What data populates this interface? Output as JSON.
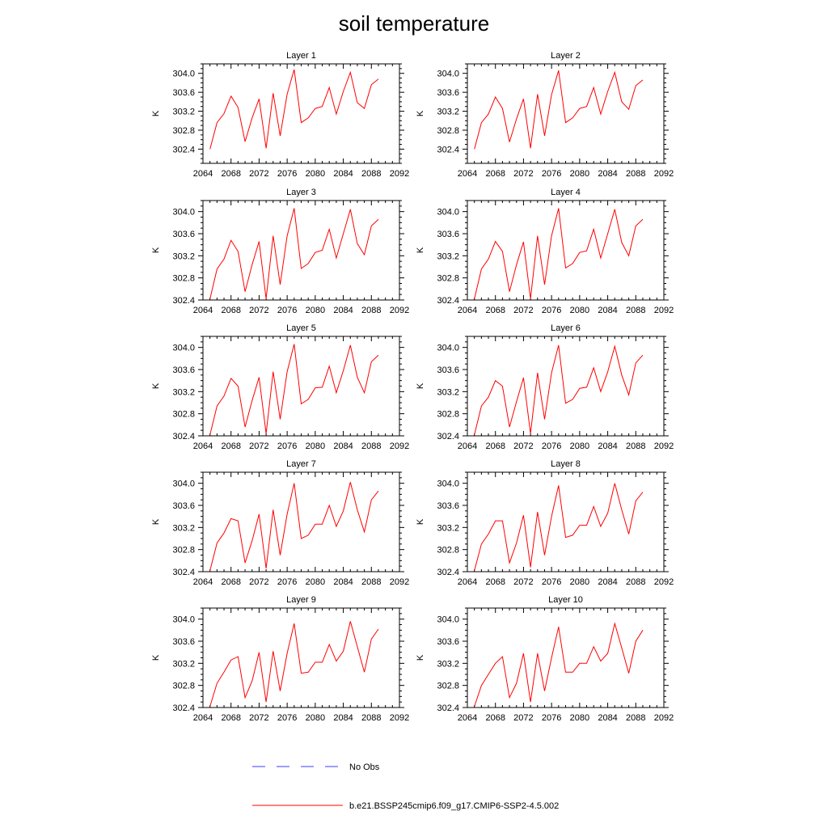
{
  "title": "soil temperature",
  "colors": {
    "series": "#ff0000",
    "obs": "#3b3bff",
    "axis": "#000000"
  },
  "legend": {
    "placement": "bottom",
    "items": [
      {
        "label": "No Obs",
        "style": "dashed",
        "color": "#3b3bff"
      },
      {
        "label": "b.e21.BSSP245cmip6.f09_g17.CMIP6-SSP2-4.5.002",
        "style": "solid",
        "color": "#ff0000"
      }
    ]
  },
  "chart_data": {
    "type": "line",
    "xlabel": "",
    "ylabel": "K",
    "xlim": [
      2064,
      2092
    ],
    "xticks": [
      "2064",
      "2068",
      "2072",
      "2076",
      "2080",
      "2084",
      "2088",
      "2092"
    ],
    "yticks": [
      "302.4",
      "302.8",
      "303.2",
      "303.6",
      "304.0"
    ],
    "grid": false,
    "x": [
      2065,
      2066,
      2067,
      2068,
      2069,
      2070,
      2071,
      2072,
      2073,
      2074,
      2075,
      2076,
      2077,
      2078,
      2079,
      2080,
      2081,
      2082,
      2083,
      2084,
      2085,
      2086,
      2087,
      2088,
      2089
    ],
    "panels": [
      {
        "title": "Layer 1",
        "ylim": [
          302.1,
          304.2
        ],
        "values": [
          302.4,
          302.96,
          303.15,
          303.52,
          303.28,
          302.56,
          303.06,
          303.46,
          302.42,
          303.58,
          302.68,
          303.56,
          304.08,
          302.96,
          303.06,
          303.26,
          303.3,
          303.7,
          303.14,
          303.62,
          304.02,
          303.38,
          303.26,
          303.76,
          303.88
        ]
      },
      {
        "title": "Layer 2",
        "ylim": [
          302.1,
          304.2
        ],
        "values": [
          302.4,
          302.96,
          303.14,
          303.5,
          303.26,
          302.55,
          303.04,
          303.46,
          302.42,
          303.56,
          302.68,
          303.55,
          304.06,
          302.96,
          303.06,
          303.26,
          303.3,
          303.7,
          303.14,
          303.62,
          304.02,
          303.4,
          303.24,
          303.74,
          303.86
        ]
      },
      {
        "title": "Layer 3",
        "ylim": [
          302.4,
          304.2
        ],
        "values": [
          302.42,
          302.96,
          303.14,
          303.48,
          303.28,
          302.55,
          303.04,
          303.46,
          302.42,
          303.56,
          302.68,
          303.56,
          304.06,
          302.97,
          303.06,
          303.26,
          303.3,
          303.68,
          303.16,
          303.6,
          304.04,
          303.42,
          303.22,
          303.74,
          303.86
        ]
      },
      {
        "title": "Layer 4",
        "ylim": [
          302.4,
          304.2
        ],
        "values": [
          302.42,
          302.96,
          303.14,
          303.46,
          303.28,
          302.55,
          303.04,
          303.45,
          302.42,
          303.56,
          302.68,
          303.56,
          304.06,
          302.98,
          303.06,
          303.26,
          303.29,
          303.68,
          303.16,
          303.6,
          304.04,
          303.44,
          303.2,
          303.74,
          303.86
        ]
      },
      {
        "title": "Layer 5",
        "ylim": [
          302.4,
          304.2
        ],
        "values": [
          302.42,
          302.94,
          303.12,
          303.44,
          303.3,
          302.56,
          303.04,
          303.46,
          302.44,
          303.56,
          302.7,
          303.56,
          304.06,
          302.98,
          303.06,
          303.27,
          303.28,
          303.66,
          303.18,
          303.58,
          304.04,
          303.46,
          303.18,
          303.74,
          303.86
        ]
      },
      {
        "title": "Layer 6",
        "ylim": [
          302.4,
          304.2
        ],
        "values": [
          302.42,
          302.94,
          303.1,
          303.4,
          303.3,
          302.56,
          303.02,
          303.45,
          302.44,
          303.54,
          302.7,
          303.54,
          304.04,
          302.99,
          303.06,
          303.26,
          303.28,
          303.63,
          303.2,
          303.56,
          304.02,
          303.5,
          303.14,
          303.72,
          303.86
        ]
      },
      {
        "title": "Layer 7",
        "ylim": [
          302.4,
          304.2
        ],
        "values": [
          302.42,
          302.92,
          303.1,
          303.36,
          303.32,
          302.56,
          302.96,
          303.44,
          302.46,
          303.52,
          302.7,
          303.44,
          304.0,
          303.0,
          303.06,
          303.26,
          303.26,
          303.6,
          303.22,
          303.5,
          304.02,
          303.52,
          303.12,
          303.7,
          303.86
        ]
      },
      {
        "title": "Layer 8",
        "ylim": [
          302.4,
          304.2
        ],
        "values": [
          302.42,
          302.9,
          303.08,
          303.32,
          303.32,
          302.56,
          302.92,
          303.42,
          302.48,
          303.48,
          302.7,
          303.4,
          303.96,
          303.02,
          303.06,
          303.24,
          303.24,
          303.58,
          303.22,
          303.46,
          304.0,
          303.52,
          303.08,
          303.68,
          303.84
        ]
      },
      {
        "title": "Layer 9",
        "ylim": [
          302.4,
          304.2
        ],
        "values": [
          302.42,
          302.84,
          303.04,
          303.26,
          303.32,
          302.58,
          302.88,
          303.4,
          302.5,
          303.42,
          302.7,
          303.38,
          303.92,
          303.02,
          303.04,
          303.22,
          303.22,
          303.54,
          303.24,
          303.42,
          303.96,
          303.5,
          303.04,
          303.64,
          303.82
        ]
      },
      {
        "title": "Layer 10",
        "ylim": [
          302.4,
          304.2
        ],
        "values": [
          302.42,
          302.8,
          303.0,
          303.2,
          303.32,
          302.58,
          302.84,
          303.38,
          302.5,
          303.38,
          302.7,
          303.3,
          303.86,
          303.04,
          303.04,
          303.2,
          303.2,
          303.5,
          303.24,
          303.38,
          303.92,
          303.48,
          303.02,
          303.6,
          303.8
        ]
      }
    ]
  }
}
